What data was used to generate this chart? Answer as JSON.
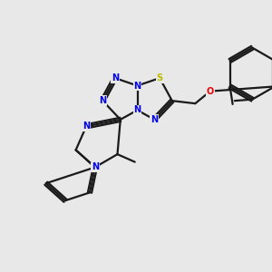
{
  "bg_color": "#e8e8e8",
  "bond_color": "#1a1a1a",
  "N_color": "#0000ee",
  "S_color": "#bbbb00",
  "O_color": "#ee0000",
  "line_width": 1.6,
  "figsize": [
    3.0,
    3.0
  ],
  "dpi": 100,
  "xlim": [
    0,
    10
  ],
  "ylim": [
    0,
    10
  ]
}
